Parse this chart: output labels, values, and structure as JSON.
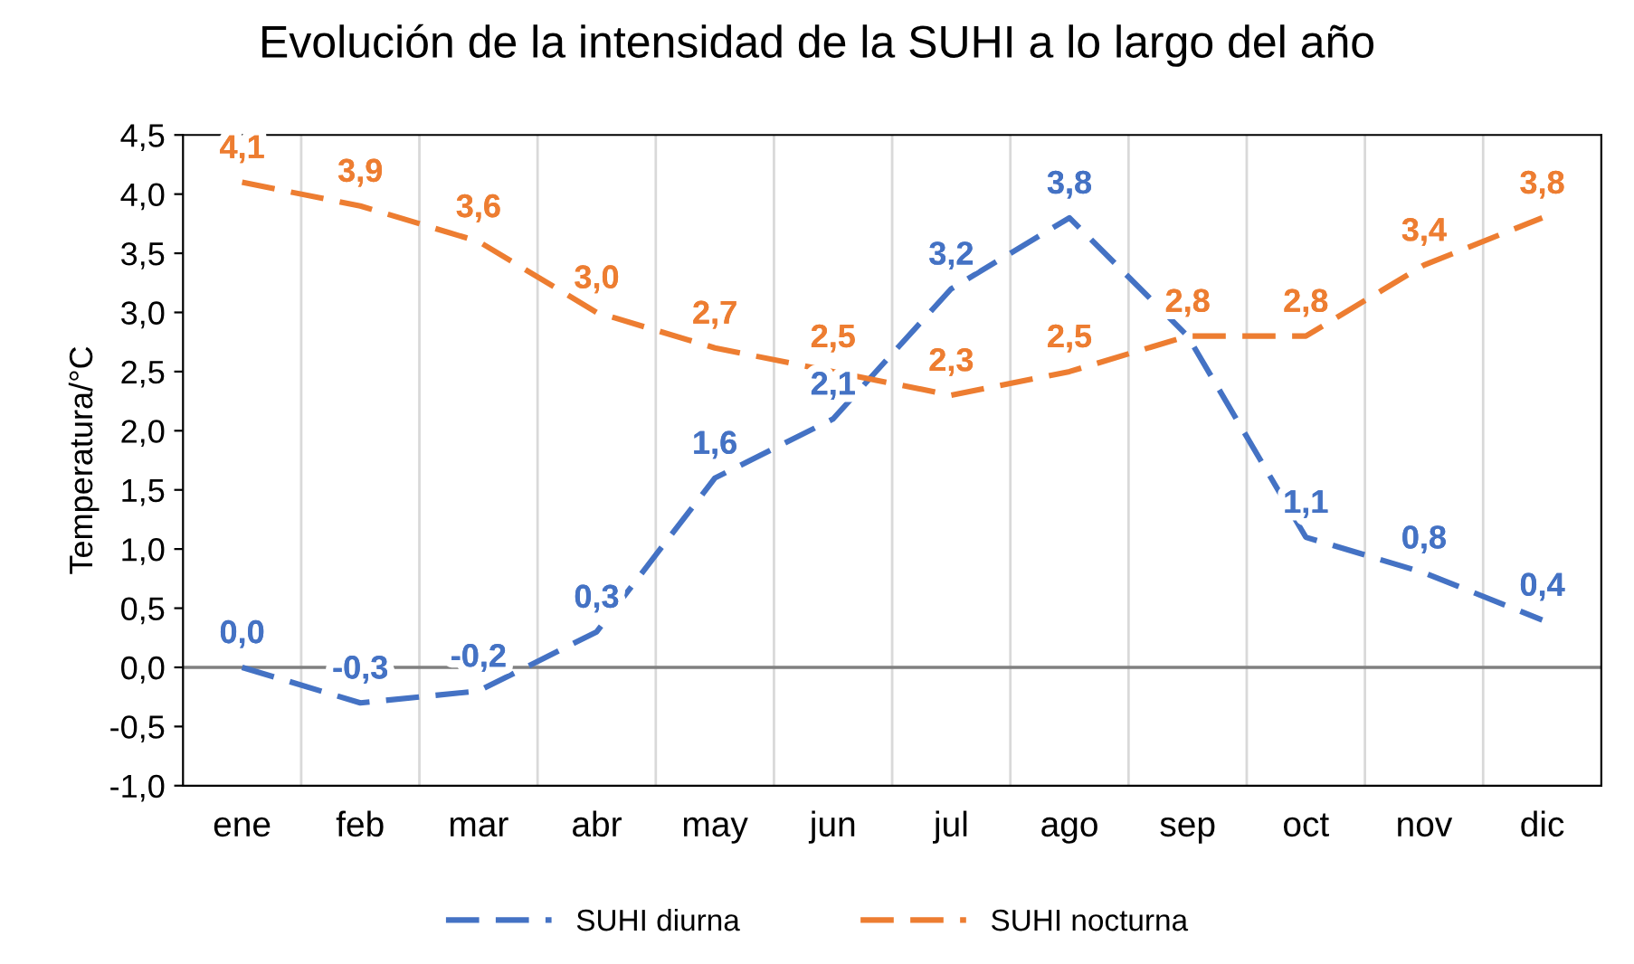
{
  "chart_data": {
    "type": "line",
    "title": "Evolución de la intensidad de la SUHI a lo largo del año",
    "ylabel": "Temperatura/°C",
    "categories": [
      "ene",
      "feb",
      "mar",
      "abr",
      "may",
      "jun",
      "jul",
      "ago",
      "sep",
      "oct",
      "nov",
      "dic"
    ],
    "series": [
      {
        "name": "SUHI diurna",
        "color": "#4472c4",
        "values": [
          0.0,
          -0.3,
          -0.2,
          0.3,
          1.6,
          2.1,
          3.2,
          3.8,
          2.8,
          1.1,
          0.8,
          0.4
        ],
        "value_labels": [
          "0,0",
          "-0,3",
          "-0,2",
          "0,3",
          "1,6",
          "2,1",
          "3,2",
          "3,8",
          null,
          "1,1",
          "0,8",
          "0,4"
        ]
      },
      {
        "name": "SUHI nocturna",
        "color": "#ed7d31",
        "values": [
          4.1,
          3.9,
          3.6,
          3.0,
          2.7,
          2.5,
          2.3,
          2.5,
          2.8,
          2.8,
          3.4,
          3.8
        ],
        "value_labels": [
          "4,1",
          "3,9",
          "3,6",
          "3,0",
          "2,7",
          "2,5",
          "2,3",
          "2,5",
          "2,8",
          "2,8",
          "3,4",
          "3,8"
        ]
      }
    ],
    "ylim": [
      -1.0,
      4.5
    ],
    "yticks": [
      {
        "value": -1.0,
        "label": "-1,0"
      },
      {
        "value": -0.5,
        "label": "-0,5"
      },
      {
        "value": 0.0,
        "label": "0,0"
      },
      {
        "value": 0.5,
        "label": "0,5"
      },
      {
        "value": 1.0,
        "label": "1,0"
      },
      {
        "value": 1.5,
        "label": "1,5"
      },
      {
        "value": 2.0,
        "label": "2,0"
      },
      {
        "value": 2.5,
        "label": "2,5"
      },
      {
        "value": 3.0,
        "label": "3,0"
      },
      {
        "value": 3.5,
        "label": "3,5"
      },
      {
        "value": 4.0,
        "label": "4,0"
      },
      {
        "value": 4.5,
        "label": "4,5"
      }
    ],
    "ref_lines": [
      {
        "axis": "y",
        "value": 0.0,
        "color": "#808080"
      }
    ],
    "grid": "x",
    "legend": "bottom",
    "marker": "none",
    "line_style": "dashed"
  }
}
